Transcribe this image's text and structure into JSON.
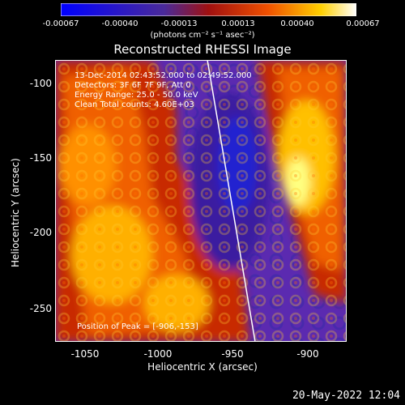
{
  "colorbar": {
    "ticks": [
      "-0.00067",
      "-0.00040",
      "-0.00013",
      "0.00013",
      "0.00040",
      "0.00067"
    ],
    "units": "(photons cm⁻² s⁻¹ asec⁻²)",
    "colors": [
      "#0000ff",
      "#5a2a9a",
      "#e03000",
      "#ff8000",
      "#ffff00",
      "#ffffff"
    ]
  },
  "title": "Reconstructed RHESSI Image",
  "info": {
    "line1": "13-Dec-2014 02:43:52.000 to 02:49:52.000",
    "line2": "Detectors: 3F 6F 7F 9F, Att 0",
    "line3": "Energy Range: 25.0 - 50.0 keV",
    "line4": "Clean     Total counts: 4.60E+03",
    "peak": "Position of Peak = [-906,-153]"
  },
  "axes": {
    "xlabel": "Heliocentric X (arcsec)",
    "ylabel": "Heliocentric Y (arcsec)",
    "xticks": [
      "-1050",
      "-1000",
      "-950",
      "-900"
    ],
    "yticks": [
      "-100",
      "-150",
      "-200",
      "-250"
    ]
  },
  "timestamp": "20-May-2022 12:04"
}
